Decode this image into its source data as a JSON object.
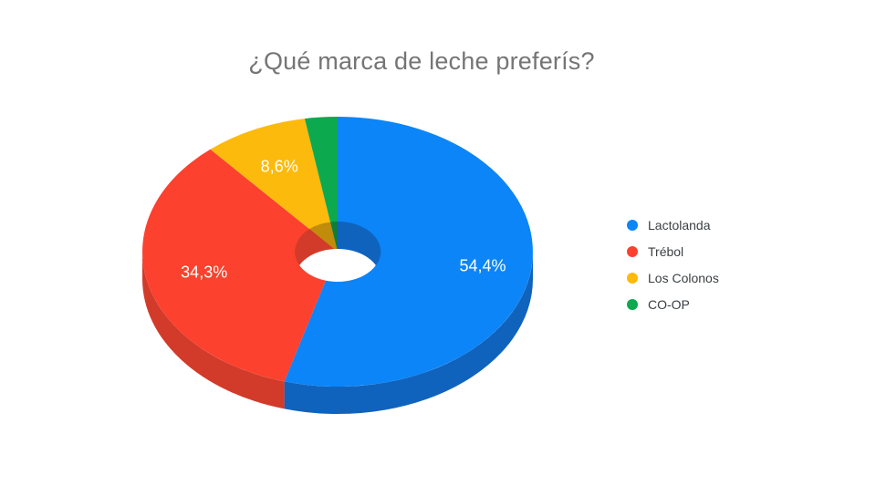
{
  "page": {
    "background": "#ffffff"
  },
  "chart_data": {
    "type": "pie",
    "subtype": "3d-donut",
    "title": "¿Qué marca de leche preferís?",
    "title_color": "#757575",
    "legend_position": "right",
    "rotation": "clockwise",
    "start_angle_deg": 0,
    "hole": true,
    "grid": false,
    "categories": [
      "Lactolanda",
      "Trébol",
      "Los Colonos",
      "CO-OP"
    ],
    "values": [
      54.4,
      34.3,
      8.6,
      2.7
    ],
    "slice_labels": [
      "54,4%",
      "34,3%",
      "8,6%",
      ""
    ],
    "colors": [
      "#0b85f8",
      "#fc412f",
      "#fcba0c",
      "#0ca94f"
    ],
    "side_colors": [
      "#1063bd",
      "#d23b29",
      "#c18b0b",
      "#0f7d3c"
    ],
    "label_text_color": "#ffffff",
    "legend_text_color": "#3c4043"
  }
}
